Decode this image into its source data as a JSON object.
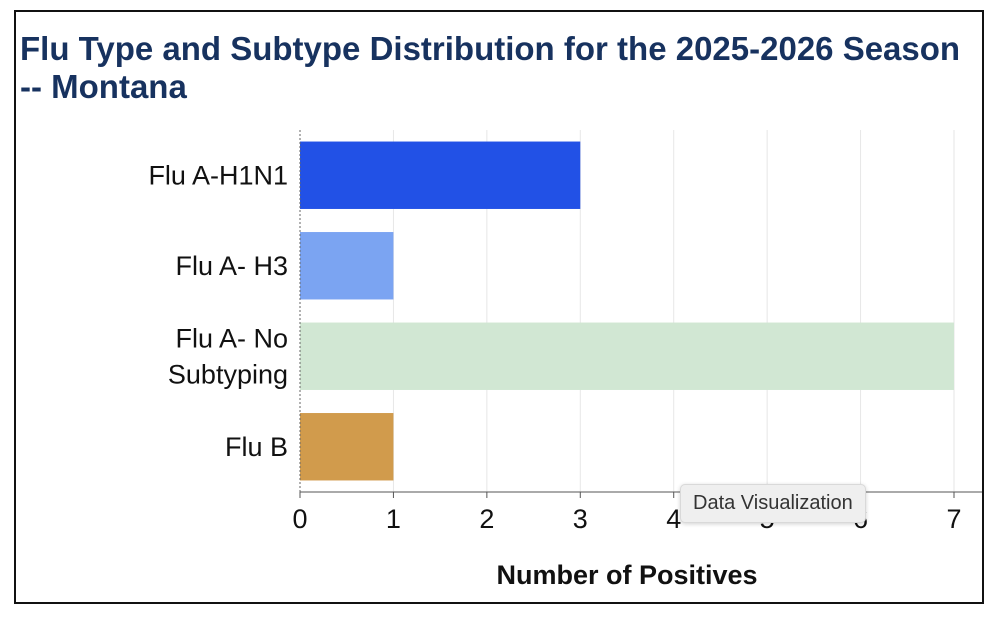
{
  "chart_data": {
    "type": "bar",
    "orientation": "horizontal",
    "title": "Flu Type and Subtype Distribution for the 2025-2026 Season -- Montana",
    "xlabel": "Number of Positives",
    "ylabel": "",
    "categories": [
      [
        "Flu A-H1N1"
      ],
      [
        "Flu A- H3"
      ],
      [
        "Flu A- No",
        "Subtyping"
      ],
      [
        "Flu B"
      ]
    ],
    "values": [
      3,
      1,
      7,
      1
    ],
    "colors": [
      "#2251e6",
      "#7ba4f2",
      "#d1e7d3",
      "#d19b4c"
    ],
    "xlim": [
      0,
      7
    ],
    "xticks": [
      "0",
      "1",
      "2",
      "3",
      "4",
      "5",
      "6",
      "7"
    ],
    "grid": "vertical"
  },
  "tooltip": {
    "text": "Data Visualization"
  }
}
